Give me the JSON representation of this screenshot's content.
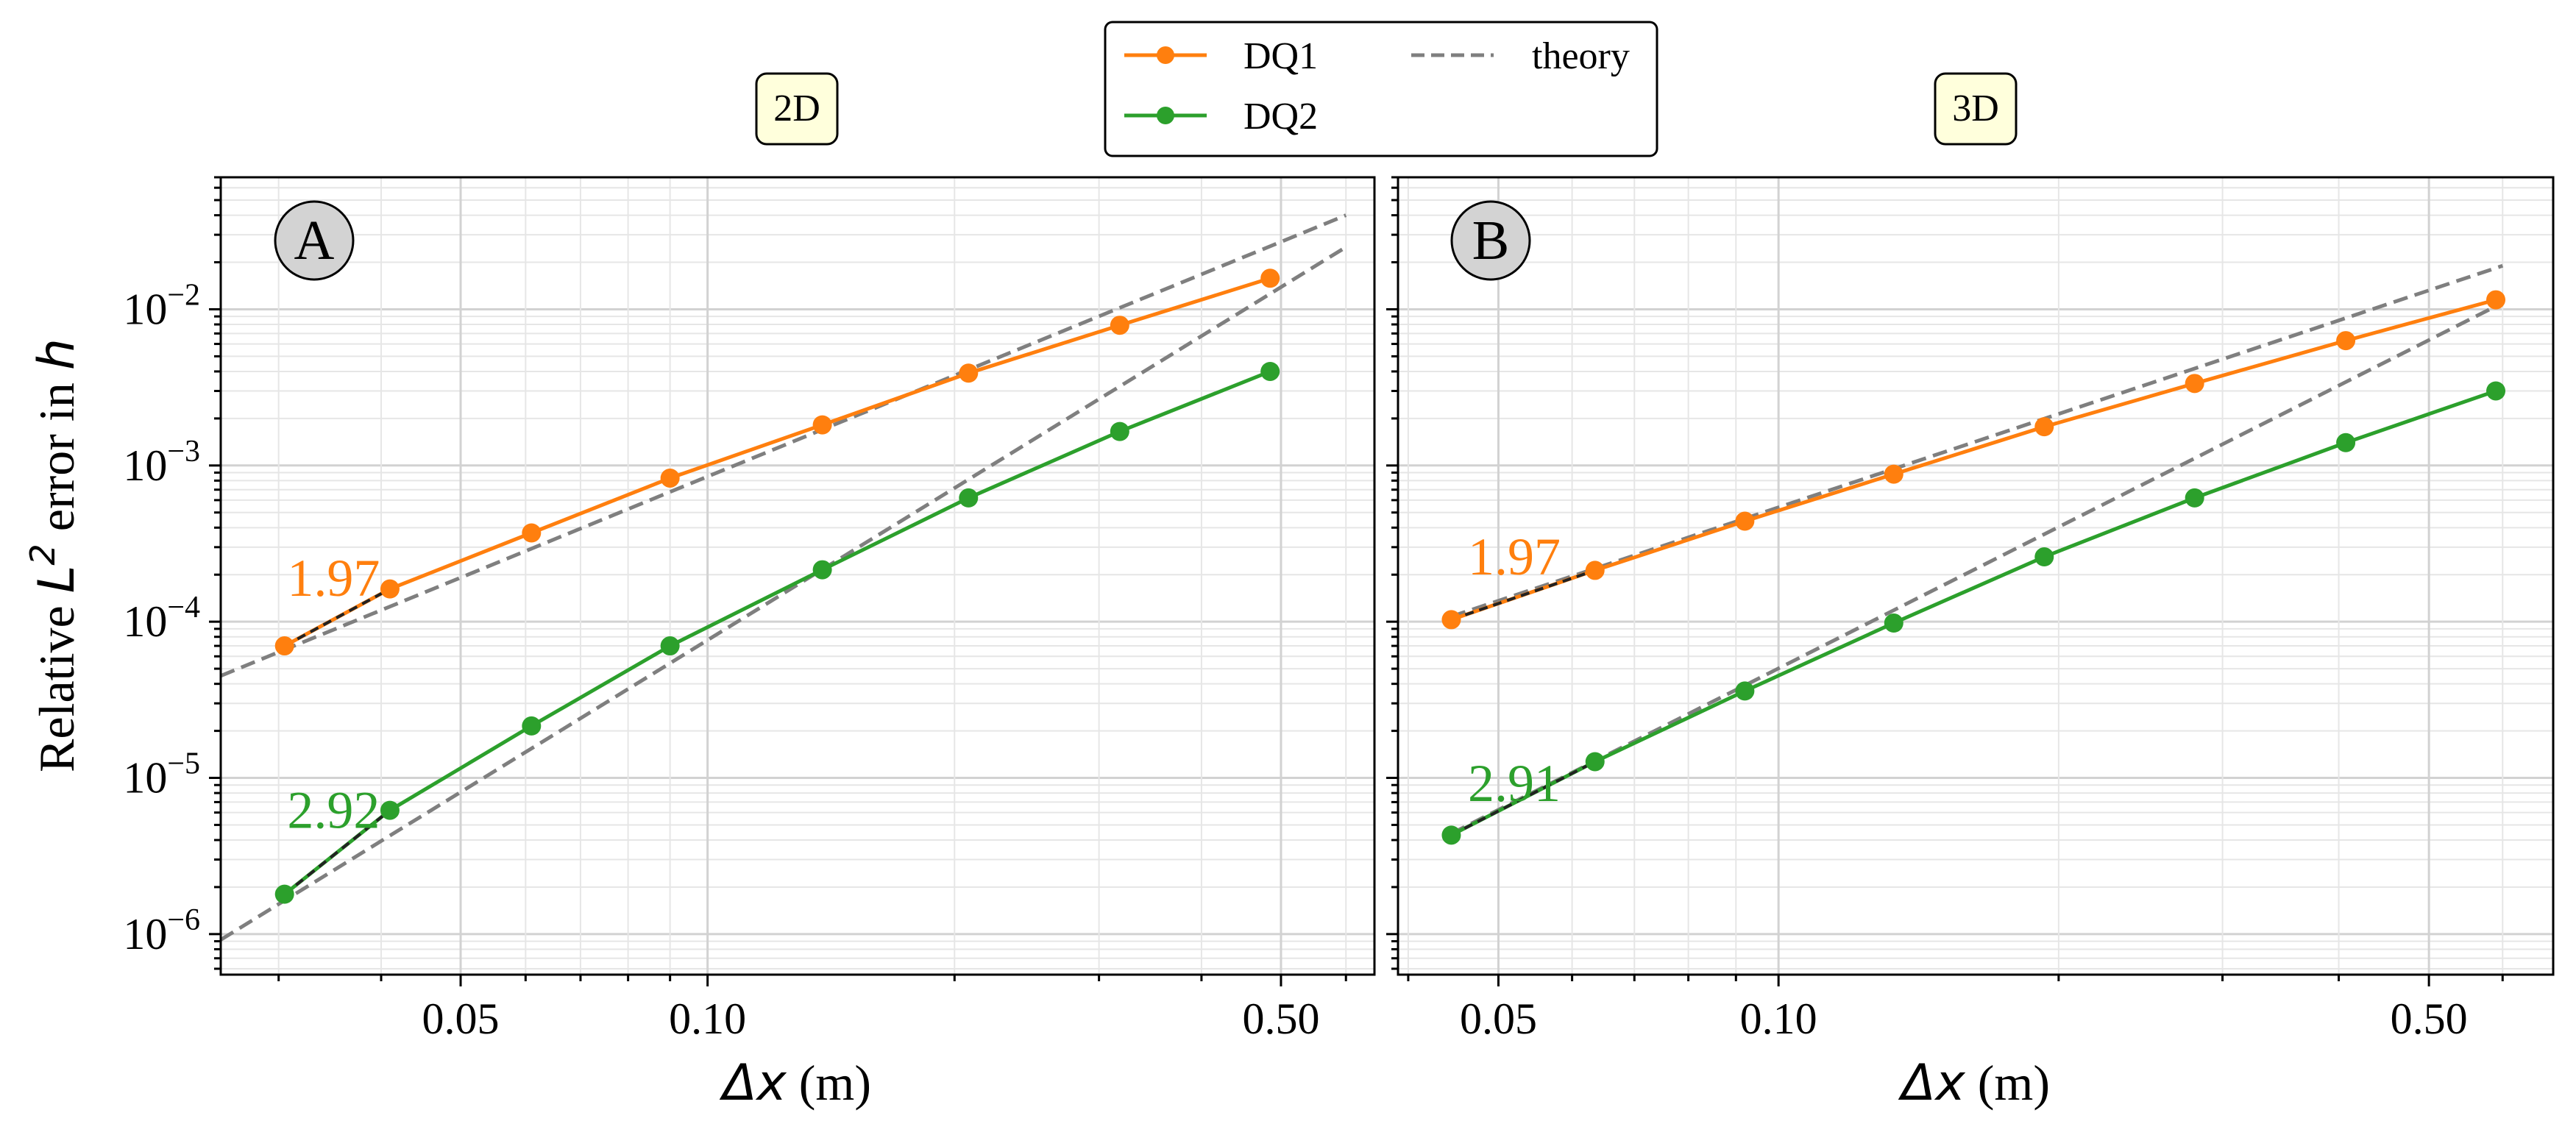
{
  "colors": {
    "DQ1": "#ff7f0e",
    "DQ2": "#2ca02c",
    "theory": "#7f7f7f",
    "panel_title_bg": "#ffffdc",
    "panel_letter_bg": "#d3d3d3"
  },
  "legend": {
    "entries": [
      "DQ1",
      "DQ2",
      "theory"
    ]
  },
  "ylabel": {
    "pre": "Relative ",
    "L": "L",
    "exp": "2",
    "mid": " error in ",
    "h": "h"
  },
  "xlabel": {
    "delta": "Δx",
    "unit": " (m)"
  },
  "y_tick_labels": [
    {
      "base": "10",
      "exp": "−2",
      "value": 0.01
    },
    {
      "base": "10",
      "exp": "−3",
      "value": 0.001
    },
    {
      "base": "10",
      "exp": "−4",
      "value": 0.0001
    },
    {
      "base": "10",
      "exp": "−5",
      "value": 1e-05
    },
    {
      "base": "10",
      "exp": "−6",
      "value": 1e-06
    }
  ],
  "chart_data": [
    {
      "type": "line",
      "panel": "A",
      "title": "2D",
      "xscale": "log",
      "yscale": "log",
      "xlim": [
        0.0255,
        0.65
      ],
      "ylim": [
        5.5e-07,
        0.07
      ],
      "xticks": [
        {
          "value": 0.05,
          "label": "0.05"
        },
        {
          "value": 0.1,
          "label": "0.10"
        },
        {
          "value": 0.5,
          "label": "0.50"
        }
      ],
      "grid": true,
      "series": [
        {
          "name": "DQ1",
          "kind": "data",
          "x": [
            0.0305,
            0.041,
            0.061,
            0.09,
            0.138,
            0.208,
            0.318,
            0.485
          ],
          "y": [
            7e-05,
            0.000162,
            0.00037,
            0.00083,
            0.00182,
            0.0039,
            0.0079,
            0.0158
          ]
        },
        {
          "name": "DQ2",
          "kind": "data",
          "x": [
            0.0305,
            0.041,
            0.061,
            0.09,
            0.138,
            0.208,
            0.318,
            0.485
          ],
          "y": [
            1.8e-06,
            6.2e-06,
            2.15e-05,
            7e-05,
            0.000215,
            0.00062,
            0.00165,
            0.004
          ]
        },
        {
          "name": "theory",
          "kind": "theory",
          "x": [
            0.0255,
            0.6
          ],
          "y": [
            4.5e-05,
            0.04
          ]
        },
        {
          "name": "theory",
          "kind": "theory",
          "x": [
            0.0255,
            0.6
          ],
          "y": [
            9.2e-07,
            0.025
          ]
        }
      ],
      "annotations": [
        {
          "text": "1.97",
          "series": "DQ1",
          "x": 0.035,
          "y": 0.00019
        },
        {
          "text": "2.92",
          "series": "DQ2",
          "x": 0.035,
          "y": 6.2e-06
        }
      ]
    },
    {
      "type": "line",
      "panel": "B",
      "title": "3D",
      "xscale": "log",
      "yscale": "log",
      "xlim": [
        0.039,
        0.68
      ],
      "ylim": [
        5.5e-07,
        0.07
      ],
      "xticks": [
        {
          "value": 0.05,
          "label": "0.05"
        },
        {
          "value": 0.1,
          "label": "0.10"
        },
        {
          "value": 0.5,
          "label": "0.50"
        }
      ],
      "grid": true,
      "series": [
        {
          "name": "DQ1",
          "kind": "data",
          "x": [
            0.0445,
            0.0635,
            0.092,
            0.133,
            0.193,
            0.28,
            0.407,
            0.59
          ],
          "y": [
            0.000103,
            0.000213,
            0.00044,
            0.00088,
            0.00177,
            0.00335,
            0.0063,
            0.0115
          ]
        },
        {
          "name": "DQ2",
          "kind": "data",
          "x": [
            0.0445,
            0.0635,
            0.092,
            0.133,
            0.193,
            0.28,
            0.407,
            0.59
          ],
          "y": [
            4.3e-06,
            1.27e-05,
            3.6e-05,
            9.8e-05,
            0.00026,
            0.00062,
            0.0014,
            0.003
          ]
        },
        {
          "name": "theory",
          "kind": "theory",
          "x": [
            0.0445,
            0.6
          ],
          "y": [
            0.000108,
            0.019
          ]
        },
        {
          "name": "theory",
          "kind": "theory",
          "x": [
            0.0445,
            0.6
          ],
          "y": [
            4.4e-06,
            0.011
          ]
        }
      ],
      "annotations": [
        {
          "text": "1.97",
          "series": "DQ1",
          "x": 0.052,
          "y": 0.00026
        },
        {
          "text": "2.91",
          "series": "DQ2",
          "x": 0.052,
          "y": 9.2e-06
        }
      ]
    }
  ]
}
